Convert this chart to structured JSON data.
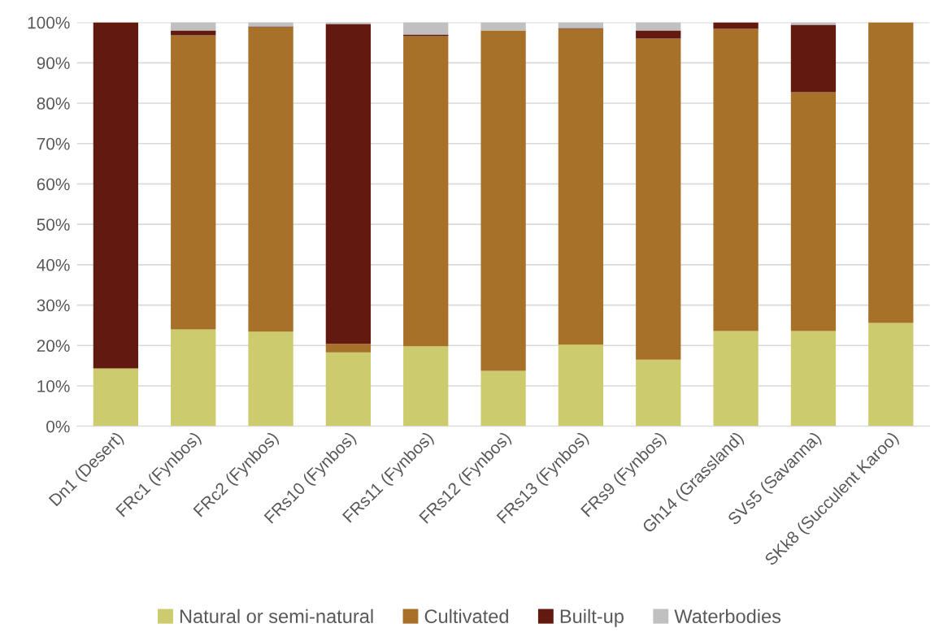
{
  "chart_data": {
    "type": "bar",
    "stacked": true,
    "categories": [
      "Dn1 (Desert)",
      "FRc1 (Fynbos)",
      "FRc2 (Fynbos)",
      "FRs10 (Fynbos)",
      "FRs11 (Fynbos)",
      "FRs12 (Fynbos)",
      "FRs13 (Fynbos)",
      "FRs9 (Fynbos)",
      "Gh14 (Grassland)",
      "SVs5 (Savanna)",
      "SKk8 (Succulent Karoo)"
    ],
    "series": [
      {
        "name": "Natural or semi-natural",
        "color": "#cccc6e",
        "values": [
          14.3,
          24.0,
          23.4,
          18.3,
          19.8,
          13.7,
          20.2,
          16.5,
          23.6,
          23.6,
          25.6
        ]
      },
      {
        "name": "Cultivated",
        "color": "#a8712a",
        "values": [
          0,
          72.8,
          75.4,
          2.1,
          76.8,
          84.3,
          78.2,
          79.5,
          74.8,
          59.1,
          74.4
        ]
      },
      {
        "name": "Built-up",
        "color": "#621910",
        "values": [
          85.7,
          1.2,
          0.2,
          79.2,
          0.4,
          0,
          0.2,
          2.0,
          1.6,
          16.7,
          0
        ]
      },
      {
        "name": "Waterbodies",
        "color": "#c0c0c0",
        "values": [
          0,
          2.0,
          1.0,
          0.4,
          3.0,
          2.0,
          1.4,
          2.0,
          0,
          0.6,
          0
        ]
      }
    ],
    "ylim": [
      0,
      100
    ],
    "yticks": [
      {
        "value": 0,
        "label": "0%"
      },
      {
        "value": 10,
        "label": "10%"
      },
      {
        "value": 20,
        "label": "20%"
      },
      {
        "value": 30,
        "label": "30%"
      },
      {
        "value": 40,
        "label": "40%"
      },
      {
        "value": 50,
        "label": "50%"
      },
      {
        "value": 60,
        "label": "60%"
      },
      {
        "value": 70,
        "label": "70%"
      },
      {
        "value": 80,
        "label": "80%"
      },
      {
        "value": 90,
        "label": "90%"
      },
      {
        "value": 100,
        "label": "100%"
      }
    ],
    "grid": "y",
    "legend": "bottom"
  }
}
